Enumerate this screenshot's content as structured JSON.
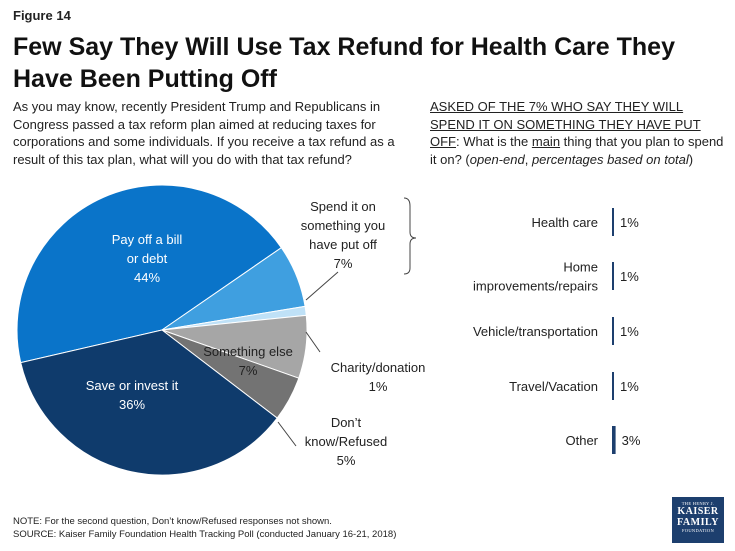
{
  "figure_label": "Figure 14",
  "title": "Few Say They Will Use Tax Refund for Health Care They Have Been Putting Off",
  "question": "As you may know, recently President Trump and Republicans in Congress passed a tax reform plan aimed at reducing taxes for corporations and some individuals. If you receive a tax refund as a result of this tax plan, what will you do with that tax refund?",
  "subquestion": {
    "header": "ASKED OF THE 7% WHO SAY THEY WILL SPEND IT ON SOMETHING THEY HAVE PUT OFF",
    "text_before": ": What is the ",
    "emphasis": "main",
    "text_after": " thing that you plan to spend it on?",
    "note_italic1": "open-end",
    "note_comma": ", ",
    "note_italic2": "percentages based on total"
  },
  "chart_data": [
    {
      "type": "pie",
      "slices": [
        {
          "label": "Pay off a bill or debt",
          "value": 44,
          "value_label": "44%",
          "color": "#0a74c9"
        },
        {
          "label": "Spend it on something you have put off",
          "value": 7,
          "value_label": "7%",
          "color": "#3f9fe0"
        },
        {
          "label": "Charity/donation",
          "value": 1,
          "value_label": "1%",
          "color": "#bfe1f7"
        },
        {
          "label": "Something else",
          "value": 7,
          "value_label": "7%",
          "color": "#a6a6a6"
        },
        {
          "label": "Don’t know/Refused",
          "value": 5,
          "value_label": "5%",
          "color": "#737373"
        },
        {
          "label": "Save or invest it",
          "value": 36,
          "value_label": "36%",
          "color": "#0f3b6c"
        }
      ]
    },
    {
      "type": "bar",
      "orientation": "horizontal",
      "categories": [
        "Health care",
        "Home improvements/repairs",
        "Vehicle/transportation",
        "Travel/Vacation",
        "Other"
      ],
      "values": [
        1,
        1,
        1,
        1,
        3
      ],
      "value_labels": [
        "1%",
        "1%",
        "1%",
        "1%",
        "3%"
      ],
      "color": "#1d3f6e"
    }
  ],
  "footer": {
    "note": "NOTE: For the second question, Don’t know/Refused responses not shown.",
    "source": "SOURCE: Kaiser Family Foundation Health Tracking Poll (conducted January 16-21, 2018)"
  },
  "logo": {
    "line1": "THE HENRY J.",
    "line2": "KAISER",
    "line3": "FAMILY",
    "line4": "FOUNDATION"
  }
}
